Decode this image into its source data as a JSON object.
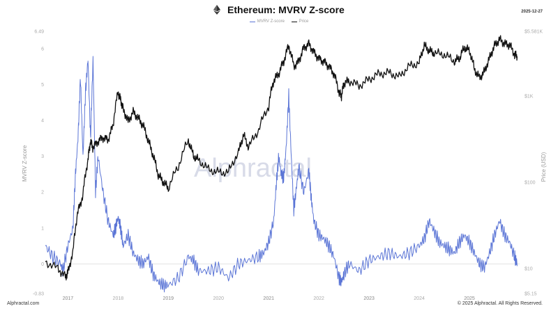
{
  "header": {
    "title": "Ethereum: MVRV Z-score",
    "date": "2025-12-27",
    "icon": "ethereum-icon"
  },
  "footer": {
    "left": "Alphractal.com",
    "right": "© 2025 Alphractal. All Rights Reserved."
  },
  "watermark": "Alphractal",
  "chart_data": {
    "type": "line",
    "title": "Ethereum: MVRV Z-score",
    "legend": {
      "placement": "top-center",
      "entries": [
        "MVRV Z-score",
        "Price"
      ]
    },
    "grid": false,
    "y_left": {
      "label": "MVRV Z-score",
      "range": [
        -0.83,
        6.49
      ],
      "ticks": [
        "6.49",
        "6",
        "5",
        "4",
        "3",
        "2",
        "1",
        "0",
        "-0.83"
      ],
      "tick_values": [
        6.49,
        6,
        5,
        4,
        3,
        2,
        1,
        0,
        -0.83
      ]
    },
    "y_right": {
      "label": "Price (USD)",
      "scale": "log",
      "range": [
        5.15,
        5581
      ],
      "ticks": [
        "$5.581K",
        "$1K",
        "$100",
        "$10",
        "$5.15"
      ],
      "tick_values": [
        5581,
        1000,
        100,
        10,
        5.15
      ]
    },
    "x_axis": {
      "range": [
        2016.55,
        2026.0
      ],
      "ticks": [
        {
          "label": "2017",
          "value": 2017,
          "major": true
        },
        {
          "label": "2018",
          "value": 2018,
          "major": false
        },
        {
          "label": "2019",
          "value": 2019,
          "major": true
        },
        {
          "label": "2020",
          "value": 2020,
          "major": false
        },
        {
          "label": "2021",
          "value": 2021,
          "major": true
        },
        {
          "label": "2022",
          "value": 2022,
          "major": false
        },
        {
          "label": "2023",
          "value": 2023,
          "major": true
        },
        {
          "label": "2024",
          "value": 2024,
          "major": false
        },
        {
          "label": "2025",
          "value": 2025,
          "major": true
        }
      ]
    },
    "series": [
      {
        "name": "MVRV Z-score",
        "color": "#5b75d6",
        "axis": "left",
        "x": [
          2016.55,
          2016.7,
          2016.85,
          2016.9,
          2017.0,
          2017.1,
          2017.15,
          2017.2,
          2017.25,
          2017.3,
          2017.35,
          2017.4,
          2017.45,
          2017.5,
          2017.55,
          2017.6,
          2017.7,
          2017.8,
          2017.9,
          2017.95,
          2018.0,
          2018.05,
          2018.1,
          2018.2,
          2018.3,
          2018.4,
          2018.5,
          2018.6,
          2018.7,
          2018.8,
          2018.9,
          2019.0,
          2019.2,
          2019.4,
          2019.5,
          2019.6,
          2019.8,
          2020.0,
          2020.2,
          2020.4,
          2020.6,
          2020.8,
          2020.9,
          2021.0,
          2021.1,
          2021.15,
          2021.2,
          2021.25,
          2021.3,
          2021.35,
          2021.4,
          2021.45,
          2021.5,
          2021.55,
          2021.6,
          2021.7,
          2021.8,
          2021.85,
          2021.9,
          2022.0,
          2022.1,
          2022.2,
          2022.3,
          2022.4,
          2022.45,
          2022.5,
          2022.6,
          2022.8,
          2023.0,
          2023.2,
          2023.4,
          2023.6,
          2023.8,
          2024.0,
          2024.1,
          2024.2,
          2024.3,
          2024.4,
          2024.5,
          2024.6,
          2024.7,
          2024.8,
          2024.9,
          2025.0,
          2025.1,
          2025.2,
          2025.3,
          2025.4,
          2025.5,
          2025.6,
          2025.7,
          2025.8,
          2025.9,
          2025.95
        ],
        "values": [
          0.5,
          0.2,
          0.0,
          -0.2,
          0.5,
          1.0,
          2.5,
          3.5,
          5.2,
          3.0,
          4.8,
          5.7,
          3.5,
          5.7,
          2.0,
          3.0,
          2.0,
          1.2,
          0.8,
          1.0,
          1.3,
          1.0,
          0.5,
          0.8,
          0.3,
          0.1,
          0.0,
          0.2,
          -0.3,
          -0.5,
          -0.6,
          -0.6,
          -0.4,
          0.2,
          0.1,
          -0.2,
          -0.2,
          -0.1,
          -0.4,
          0.0,
          0.1,
          0.2,
          0.3,
          0.6,
          1.2,
          2.2,
          3.0,
          2.5,
          2.4,
          3.3,
          4.7,
          3.0,
          1.5,
          2.1,
          2.7,
          2.0,
          2.6,
          1.8,
          1.2,
          0.8,
          0.7,
          0.5,
          0.2,
          -0.4,
          -0.5,
          -0.3,
          0.0,
          -0.2,
          0.1,
          0.2,
          0.3,
          0.2,
          0.3,
          0.5,
          0.7,
          1.2,
          0.9,
          0.6,
          0.5,
          0.4,
          0.3,
          0.6,
          0.8,
          0.6,
          0.3,
          0.0,
          -0.1,
          0.3,
          0.8,
          1.2,
          0.8,
          0.6,
          0.2,
          0.0
        ]
      },
      {
        "name": "Price",
        "color": "#111111",
        "axis": "right",
        "x": [
          2016.55,
          2016.8,
          2016.95,
          2017.0,
          2017.1,
          2017.2,
          2017.3,
          2017.4,
          2017.45,
          2017.5,
          2017.6,
          2017.7,
          2017.8,
          2017.9,
          2018.0,
          2018.05,
          2018.1,
          2018.2,
          2018.3,
          2018.4,
          2018.5,
          2018.6,
          2018.7,
          2018.8,
          2018.9,
          2019.0,
          2019.2,
          2019.4,
          2019.5,
          2019.6,
          2019.8,
          2020.0,
          2020.2,
          2020.4,
          2020.5,
          2020.6,
          2020.8,
          2021.0,
          2021.1,
          2021.2,
          2021.3,
          2021.4,
          2021.5,
          2021.6,
          2021.7,
          2021.8,
          2021.9,
          2022.0,
          2022.1,
          2022.2,
          2022.3,
          2022.4,
          2022.45,
          2022.5,
          2022.6,
          2022.8,
          2023.0,
          2023.2,
          2023.4,
          2023.6,
          2023.8,
          2024.0,
          2024.1,
          2024.2,
          2024.3,
          2024.5,
          2024.7,
          2024.8,
          2024.9,
          2025.0,
          2025.1,
          2025.2,
          2025.3,
          2025.4,
          2025.5,
          2025.6,
          2025.7,
          2025.8,
          2025.9,
          2025.95
        ],
        "values": [
          12,
          10,
          8,
          9,
          15,
          45,
          70,
          180,
          300,
          250,
          300,
          330,
          310,
          450,
          1100,
          900,
          700,
          500,
          650,
          550,
          450,
          300,
          200,
          120,
          100,
          85,
          150,
          300,
          200,
          180,
          140,
          130,
          130,
          220,
          350,
          250,
          400,
          750,
          1500,
          1800,
          2500,
          3800,
          2200,
          2500,
          3600,
          4000,
          3200,
          2700,
          2500,
          2200,
          1800,
          1100,
          1000,
          1400,
          1500,
          1300,
          1550,
          1800,
          1850,
          1650,
          2200,
          2400,
          3800,
          3300,
          3100,
          3000,
          2500,
          2700,
          3600,
          3300,
          2000,
          1600,
          1900,
          2700,
          3800,
          4500,
          4000,
          3900,
          3000,
          2950
        ]
      }
    ]
  }
}
